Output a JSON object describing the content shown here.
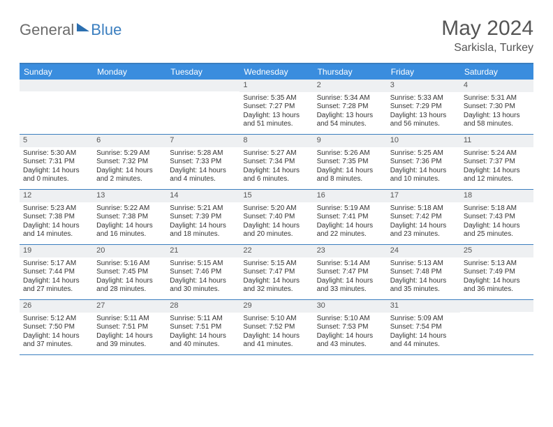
{
  "brand": {
    "part1": "General",
    "part2": "Blue"
  },
  "title": "May 2024",
  "subtitle": "Sarkisla, Turkey",
  "colors": {
    "header_bar": "#3a8dde",
    "rule": "#3a7ebf",
    "daynum_bg": "#eef0f2",
    "text": "#333333",
    "title_text": "#555555"
  },
  "day_labels": [
    "Sunday",
    "Monday",
    "Tuesday",
    "Wednesday",
    "Thursday",
    "Friday",
    "Saturday"
  ],
  "weeks": [
    [
      {
        "n": "",
        "lines": []
      },
      {
        "n": "",
        "lines": []
      },
      {
        "n": "",
        "lines": []
      },
      {
        "n": "1",
        "lines": [
          "Sunrise: 5:35 AM",
          "Sunset: 7:27 PM",
          "Daylight: 13 hours and 51 minutes."
        ]
      },
      {
        "n": "2",
        "lines": [
          "Sunrise: 5:34 AM",
          "Sunset: 7:28 PM",
          "Daylight: 13 hours and 54 minutes."
        ]
      },
      {
        "n": "3",
        "lines": [
          "Sunrise: 5:33 AM",
          "Sunset: 7:29 PM",
          "Daylight: 13 hours and 56 minutes."
        ]
      },
      {
        "n": "4",
        "lines": [
          "Sunrise: 5:31 AM",
          "Sunset: 7:30 PM",
          "Daylight: 13 hours and 58 minutes."
        ]
      }
    ],
    [
      {
        "n": "5",
        "lines": [
          "Sunrise: 5:30 AM",
          "Sunset: 7:31 PM",
          "Daylight: 14 hours and 0 minutes."
        ]
      },
      {
        "n": "6",
        "lines": [
          "Sunrise: 5:29 AM",
          "Sunset: 7:32 PM",
          "Daylight: 14 hours and 2 minutes."
        ]
      },
      {
        "n": "7",
        "lines": [
          "Sunrise: 5:28 AM",
          "Sunset: 7:33 PM",
          "Daylight: 14 hours and 4 minutes."
        ]
      },
      {
        "n": "8",
        "lines": [
          "Sunrise: 5:27 AM",
          "Sunset: 7:34 PM",
          "Daylight: 14 hours and 6 minutes."
        ]
      },
      {
        "n": "9",
        "lines": [
          "Sunrise: 5:26 AM",
          "Sunset: 7:35 PM",
          "Daylight: 14 hours and 8 minutes."
        ]
      },
      {
        "n": "10",
        "lines": [
          "Sunrise: 5:25 AM",
          "Sunset: 7:36 PM",
          "Daylight: 14 hours and 10 minutes."
        ]
      },
      {
        "n": "11",
        "lines": [
          "Sunrise: 5:24 AM",
          "Sunset: 7:37 PM",
          "Daylight: 14 hours and 12 minutes."
        ]
      }
    ],
    [
      {
        "n": "12",
        "lines": [
          "Sunrise: 5:23 AM",
          "Sunset: 7:38 PM",
          "Daylight: 14 hours and 14 minutes."
        ]
      },
      {
        "n": "13",
        "lines": [
          "Sunrise: 5:22 AM",
          "Sunset: 7:38 PM",
          "Daylight: 14 hours and 16 minutes."
        ]
      },
      {
        "n": "14",
        "lines": [
          "Sunrise: 5:21 AM",
          "Sunset: 7:39 PM",
          "Daylight: 14 hours and 18 minutes."
        ]
      },
      {
        "n": "15",
        "lines": [
          "Sunrise: 5:20 AM",
          "Sunset: 7:40 PM",
          "Daylight: 14 hours and 20 minutes."
        ]
      },
      {
        "n": "16",
        "lines": [
          "Sunrise: 5:19 AM",
          "Sunset: 7:41 PM",
          "Daylight: 14 hours and 22 minutes."
        ]
      },
      {
        "n": "17",
        "lines": [
          "Sunrise: 5:18 AM",
          "Sunset: 7:42 PM",
          "Daylight: 14 hours and 23 minutes."
        ]
      },
      {
        "n": "18",
        "lines": [
          "Sunrise: 5:18 AM",
          "Sunset: 7:43 PM",
          "Daylight: 14 hours and 25 minutes."
        ]
      }
    ],
    [
      {
        "n": "19",
        "lines": [
          "Sunrise: 5:17 AM",
          "Sunset: 7:44 PM",
          "Daylight: 14 hours and 27 minutes."
        ]
      },
      {
        "n": "20",
        "lines": [
          "Sunrise: 5:16 AM",
          "Sunset: 7:45 PM",
          "Daylight: 14 hours and 28 minutes."
        ]
      },
      {
        "n": "21",
        "lines": [
          "Sunrise: 5:15 AM",
          "Sunset: 7:46 PM",
          "Daylight: 14 hours and 30 minutes."
        ]
      },
      {
        "n": "22",
        "lines": [
          "Sunrise: 5:15 AM",
          "Sunset: 7:47 PM",
          "Daylight: 14 hours and 32 minutes."
        ]
      },
      {
        "n": "23",
        "lines": [
          "Sunrise: 5:14 AM",
          "Sunset: 7:47 PM",
          "Daylight: 14 hours and 33 minutes."
        ]
      },
      {
        "n": "24",
        "lines": [
          "Sunrise: 5:13 AM",
          "Sunset: 7:48 PM",
          "Daylight: 14 hours and 35 minutes."
        ]
      },
      {
        "n": "25",
        "lines": [
          "Sunrise: 5:13 AM",
          "Sunset: 7:49 PM",
          "Daylight: 14 hours and 36 minutes."
        ]
      }
    ],
    [
      {
        "n": "26",
        "lines": [
          "Sunrise: 5:12 AM",
          "Sunset: 7:50 PM",
          "Daylight: 14 hours and 37 minutes."
        ]
      },
      {
        "n": "27",
        "lines": [
          "Sunrise: 5:11 AM",
          "Sunset: 7:51 PM",
          "Daylight: 14 hours and 39 minutes."
        ]
      },
      {
        "n": "28",
        "lines": [
          "Sunrise: 5:11 AM",
          "Sunset: 7:51 PM",
          "Daylight: 14 hours and 40 minutes."
        ]
      },
      {
        "n": "29",
        "lines": [
          "Sunrise: 5:10 AM",
          "Sunset: 7:52 PM",
          "Daylight: 14 hours and 41 minutes."
        ]
      },
      {
        "n": "30",
        "lines": [
          "Sunrise: 5:10 AM",
          "Sunset: 7:53 PM",
          "Daylight: 14 hours and 43 minutes."
        ]
      },
      {
        "n": "31",
        "lines": [
          "Sunrise: 5:09 AM",
          "Sunset: 7:54 PM",
          "Daylight: 14 hours and 44 minutes."
        ]
      },
      {
        "n": "",
        "lines": []
      }
    ]
  ]
}
